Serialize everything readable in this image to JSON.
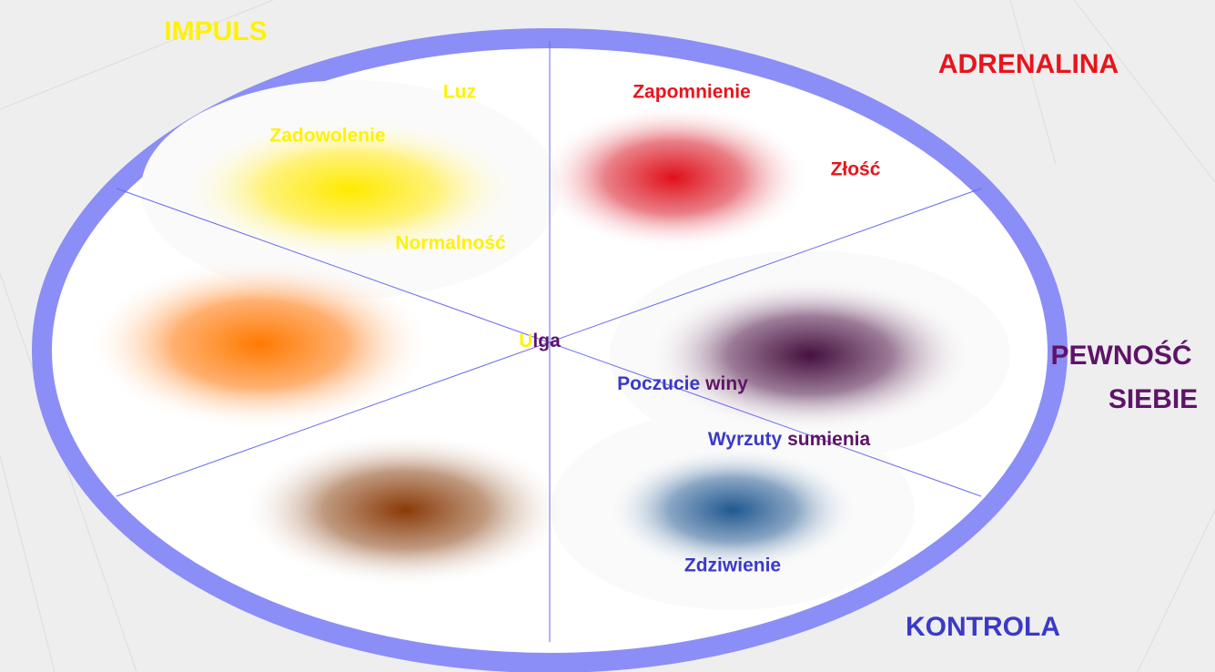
{
  "corners": {
    "impuls": "IMPULS",
    "adrenalina": "ADRENALINA",
    "pewnosc": [
      "PEWNOŚĆ",
      "SIEBIE"
    ],
    "kontrola": "KONTROLA"
  },
  "emotions": {
    "luz": "Luz",
    "zapomnienie": "Zapomnienie",
    "zadowolenie": "Zadowolenie",
    "zlosc": "Złość",
    "normalnosc": "Normalność",
    "ulga": [
      "U",
      "lga"
    ],
    "poczucie_winy": [
      "Poczucie",
      "winy"
    ],
    "wyrzuty_sumienia": [
      "Wyrzuty",
      "sumienia"
    ],
    "zdziwienie": "Zdziwienie"
  }
}
